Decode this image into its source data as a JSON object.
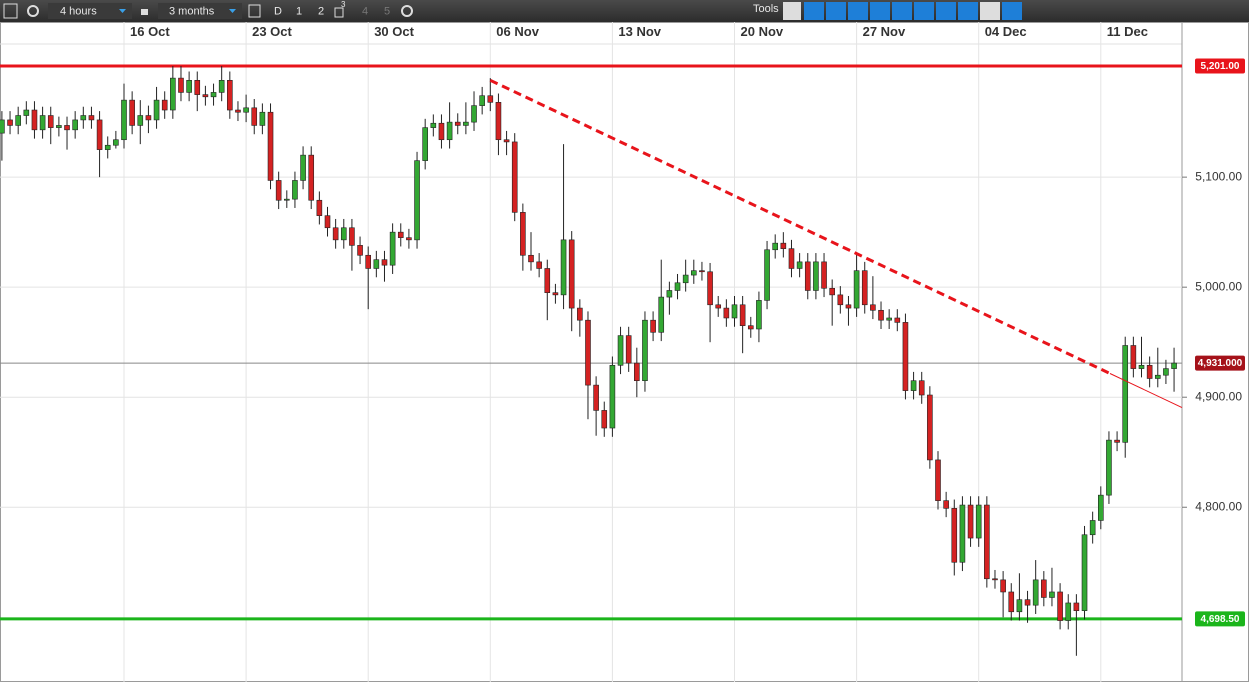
{
  "toolbar": {
    "interval": "4 hours",
    "range": "3 months",
    "d": "D",
    "one": "1",
    "two": "2",
    "three": "3",
    "four": "4",
    "five": "5",
    "tools": "Tools"
  },
  "chart_data": {
    "type": "candlestick",
    "up_color": "#33a833",
    "down_color": "#d42222",
    "grid": true,
    "categories": [
      null,
      null,
      null,
      null,
      null,
      null,
      null,
      null,
      null,
      null,
      null,
      null,
      null,
      null,
      null,
      "16 Oct",
      null,
      null,
      null,
      null,
      null,
      null,
      null,
      null,
      null,
      null,
      null,
      null,
      null,
      null,
      "23 Oct",
      null,
      null,
      null,
      null,
      null,
      null,
      null,
      null,
      null,
      null,
      null,
      null,
      null,
      null,
      "30 Oct",
      null,
      null,
      null,
      null,
      null,
      null,
      null,
      null,
      null,
      null,
      null,
      null,
      null,
      null,
      "06 Nov",
      null,
      null,
      null,
      null,
      null,
      null,
      null,
      null,
      null,
      null,
      null,
      null,
      null,
      null,
      "13 Nov",
      null,
      null,
      null,
      null,
      null,
      null,
      null,
      null,
      null,
      null,
      null,
      null,
      null,
      null,
      "20 Nov",
      null,
      null,
      null,
      null,
      null,
      null,
      null,
      null,
      null,
      null,
      null,
      null,
      null,
      null,
      "27 Nov",
      null,
      null,
      null,
      null,
      null,
      null,
      null,
      null,
      null,
      null,
      null,
      null,
      null,
      null,
      "04 Dec",
      null,
      null,
      null,
      null,
      null,
      null,
      null,
      null,
      null,
      null,
      null,
      null,
      null,
      null,
      "11 Dec",
      null,
      null,
      null,
      null,
      null,
      null,
      null,
      null,
      null
    ],
    "open": [
      5140,
      5152,
      5147,
      5156,
      5161,
      5143,
      5156,
      5145,
      5147,
      5143,
      5152,
      5156,
      5152,
      5125,
      5129,
      5134,
      5170,
      5147,
      5156,
      5152,
      5170,
      5161,
      5190,
      5177,
      5188,
      5175,
      5173,
      5177,
      5188,
      5161,
      5159,
      5163,
      5147,
      5159,
      5097,
      5079,
      5080,
      5097,
      5120,
      5079,
      5065,
      5054,
      5043,
      5054,
      5038,
      5029,
      5017,
      5025,
      5020,
      5050,
      5045,
      5043,
      5115,
      5145,
      5149,
      5134,
      5150,
      5147,
      5150,
      5165,
      5174,
      5168,
      5134,
      5132,
      5068,
      5029,
      5023,
      5017,
      4995,
      4993,
      5043,
      4981,
      4970,
      4911,
      4888,
      4872,
      4929,
      4956,
      4931,
      4915,
      4970,
      4959,
      4991,
      4997,
      5004,
      5011,
      5015,
      5014,
      4984,
      4981,
      4972,
      4984,
      4965,
      4962,
      4988,
      5034,
      5040,
      5035,
      5017,
      5023,
      4997,
      5023,
      4999,
      4993,
      4984,
      4981,
      5015,
      4984,
      4979,
      4970,
      4972,
      4968,
      4906,
      4915,
      4902,
      4843,
      4806,
      4799,
      4750,
      4802,
      4772,
      4802,
      4735,
      4734,
      4723,
      4705,
      4716,
      4711,
      4734,
      4718,
      4723,
      4697,
      4713,
      4706,
      4775,
      4788,
      4811,
      4861,
      4859,
      4947,
      4926,
      4929,
      4917,
      4920,
      4926
    ],
    "high": [
      5160,
      5160,
      5164,
      5169,
      5169,
      5164,
      5164,
      5155,
      5155,
      5160,
      5164,
      5164,
      5160,
      5137,
      5142,
      5185,
      5178,
      5170,
      5165,
      5182,
      5178,
      5201,
      5201,
      5196,
      5196,
      5183,
      5185,
      5201,
      5196,
      5169,
      5175,
      5171,
      5167,
      5167,
      5105,
      5088,
      5105,
      5128,
      5128,
      5087,
      5073,
      5062,
      5062,
      5062,
      5046,
      5037,
      5033,
      5033,
      5058,
      5058,
      5053,
      5123,
      5153,
      5157,
      5157,
      5168,
      5158,
      5168,
      5178,
      5182,
      5190,
      5176,
      5142,
      5140,
      5076,
      5050,
      5031,
      5025,
      5003,
      5130,
      5051,
      4989,
      4978,
      4919,
      4896,
      4937,
      4964,
      4964,
      4945,
      4978,
      4978,
      5025,
      5005,
      5012,
      5025,
      5025,
      5023,
      5022,
      4992,
      4989,
      4992,
      4992,
      4973,
      4996,
      5042,
      5048,
      5050,
      5043,
      5031,
      5031,
      5031,
      5031,
      5007,
      5001,
      4992,
      5030,
      5023,
      5010,
      4987,
      4980,
      4980,
      4976,
      4923,
      4923,
      4910,
      4851,
      4814,
      4807,
      4810,
      4810,
      4810,
      4810,
      4743,
      4742,
      4731,
      4740,
      4724,
      4752,
      4742,
      4745,
      4731,
      4721,
      4721,
      4783,
      4796,
      4819,
      4869,
      4869,
      4955,
      4955,
      4955,
      4937,
      4945,
      4934,
      4945
    ],
    "low": [
      5115,
      5139,
      5139,
      5148,
      5135,
      5135,
      5130,
      5137,
      5125,
      5135,
      5144,
      5144,
      5100,
      5117,
      5126,
      5126,
      5139,
      5130,
      5140,
      5144,
      5153,
      5153,
      5169,
      5169,
      5160,
      5165,
      5165,
      5169,
      5153,
      5151,
      5150,
      5139,
      5139,
      5089,
      5071,
      5072,
      5072,
      5089,
      5071,
      5057,
      5046,
      5035,
      5035,
      5015,
      5021,
      4980,
      5009,
      5005,
      5012,
      5037,
      5035,
      5035,
      5107,
      5137,
      5126,
      5126,
      5139,
      5139,
      5142,
      5157,
      5160,
      5120,
      5120,
      5060,
      5015,
      5015,
      5009,
      4970,
      4985,
      4980,
      4960,
      4955,
      4880,
      4865,
      4864,
      4864,
      4921,
      4923,
      4900,
      4905,
      4951,
      4951,
      4975,
      4989,
      4996,
      5003,
      5006,
      4950,
      4973,
      4964,
      4964,
      4940,
      4954,
      4950,
      4980,
      5026,
      5027,
      5009,
      5009,
      4989,
      4989,
      4991,
      4965,
      4976,
      4965,
      4973,
      4976,
      4971,
      4962,
      4962,
      4960,
      4898,
      4898,
      4894,
      4835,
      4798,
      4791,
      4738,
      4742,
      4764,
      4764,
      4727,
      4726,
      4700,
      4697,
      4697,
      4695,
      4703,
      4710,
      4710,
      4689,
      4689,
      4665,
      4698,
      4767,
      4780,
      4803,
      4851,
      4845,
      4918,
      4918,
      4909,
      4909,
      4912,
      4905
    ],
    "close": [
      5152,
      5147,
      5156,
      5161,
      5143,
      5156,
      5145,
      5147,
      5143,
      5152,
      5156,
      5152,
      5125,
      5129,
      5134,
      5170,
      5147,
      5156,
      5152,
      5170,
      5161,
      5190,
      5177,
      5188,
      5175,
      5173,
      5177,
      5188,
      5161,
      5159,
      5163,
      5147,
      5159,
      5097,
      5079,
      5080,
      5097,
      5120,
      5079,
      5065,
      5054,
      5043,
      5054,
      5038,
      5029,
      5017,
      5025,
      5020,
      5050,
      5045,
      5043,
      5115,
      5145,
      5149,
      5134,
      5150,
      5147,
      5150,
      5165,
      5174,
      5168,
      5134,
      5132,
      5068,
      5029,
      5023,
      5017,
      4995,
      4993,
      5043,
      4981,
      4970,
      4911,
      4888,
      4872,
      4929,
      4956,
      4931,
      4915,
      4970,
      4959,
      4991,
      4997,
      5004,
      5011,
      5015,
      5014,
      4984,
      4981,
      4972,
      4984,
      4965,
      4962,
      4988,
      5034,
      5040,
      5035,
      5017,
      5023,
      4997,
      5023,
      4999,
      4993,
      4984,
      4981,
      5015,
      4984,
      4979,
      4970,
      4972,
      4968,
      4906,
      4915,
      4902,
      4843,
      4806,
      4799,
      4750,
      4802,
      4772,
      4802,
      4735,
      4734,
      4723,
      4705,
      4716,
      4711,
      4734,
      4718,
      4723,
      4697,
      4713,
      4706,
      4775,
      4788,
      4811,
      4861,
      4859,
      4947,
      4926,
      4929,
      4917,
      4920,
      4926,
      4931
    ],
    "ylim": [
      4643,
      5221
    ],
    "yticks": [
      {
        "value": 5100,
        "label": "5,100.00"
      },
      {
        "value": 5000,
        "label": "5,000.00"
      },
      {
        "value": 4900,
        "label": "4,900.00"
      },
      {
        "value": 4800,
        "label": "4,800.00"
      }
    ],
    "hlines": [
      {
        "value": 5201,
        "label": "5,201.00",
        "color": "#e8141b",
        "line_width": 3
      },
      {
        "value": 4931,
        "label": "4,931.000",
        "color": "#a5121a",
        "line_width": 1
      },
      {
        "value": 4698.5,
        "label": "4,698.50",
        "color": "#1bb51b",
        "line_width": 3
      }
    ],
    "trendline": {
      "color": "#e8141b",
      "from": {
        "index": 60,
        "value": 5188
      },
      "to": {
        "index": 144,
        "value": 4894
      }
    }
  }
}
